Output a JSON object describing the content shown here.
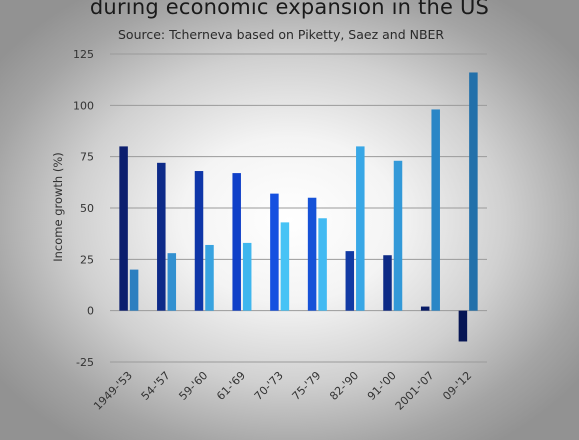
{
  "chart_data": {
    "type": "bar",
    "title": "during economic expansion in the US",
    "subtitle": "Source: Tcherneva based on Piketty, Saez and NBER",
    "xlabel": "",
    "ylabel": "Income growth (%)",
    "ylim": [
      -25,
      125
    ],
    "yticks": [
      -25,
      0,
      25,
      50,
      75,
      100,
      125
    ],
    "grid": true,
    "categories": [
      "1949-'53",
      "54-'57",
      "59-'60",
      "61-'69",
      "70-'73",
      "75-'79",
      "82-'90",
      "91-'00",
      "2001-'07",
      "09-'12"
    ],
    "series": [
      {
        "values": [
          80,
          72,
          68,
          67,
          57,
          55,
          29,
          27,
          2,
          -15
        ],
        "colors": [
          "#0c1e6e",
          "#0d2a88",
          "#0f36a8",
          "#1040c8",
          "#1550e0",
          "#1652d8",
          "#123aa4",
          "#0d2a86",
          "#091c66",
          "#061554"
        ]
      },
      {
        "values": [
          20,
          28,
          32,
          33,
          43,
          45,
          80,
          73,
          98,
          116
        ],
        "colors": [
          "#2c7fc0",
          "#3290d0",
          "#38a3e0",
          "#3fb6ee",
          "#47c3f5",
          "#42baf2",
          "#38a7e6",
          "#3399d8",
          "#2a86c6",
          "#2270aa"
        ]
      }
    ]
  }
}
